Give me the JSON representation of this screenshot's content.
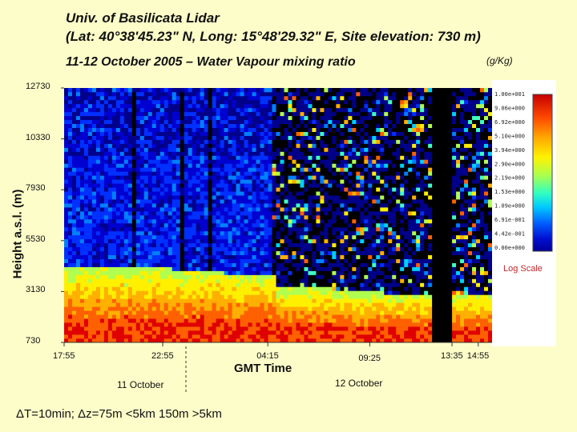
{
  "header": {
    "title_line1": "Univ. of Basilicata Lidar",
    "title_line2": "(Lat: 40°38'45.23\" N, Long: 15°48'29.32\" E, Site elevation: 730 m)",
    "subtitle": "11-12 October 2005 – Water Vapour mixing ratio",
    "units": "(g/Kg)"
  },
  "footer": {
    "resolution": "ΔT=10min;  Δz=75m <5km 150m >5km"
  },
  "colorbar": {
    "scale_note": "Log Scale",
    "labels": [
      "1.00e+001",
      "9.06e+000",
      "6.92e+000",
      "5.10e+000",
      "3.94e+000",
      "2.90e+000",
      "2.19e+000",
      "1.53e+000",
      "1.09e+000",
      "6.91e-001",
      "4.42e-001",
      "0.00e+000"
    ],
    "colors": [
      "#d40000",
      "#ff3000",
      "#ff8a00",
      "#ffd600",
      "#e6ff2a",
      "#9dff5a",
      "#3dffb0",
      "#00e6ff",
      "#008cff",
      "#0033ff",
      "#0000b8",
      "#000000"
    ]
  },
  "chart_data": {
    "type": "heatmap",
    "title": "11-12 October 2005 – Water Vapour mixing ratio",
    "ylabel": "Height a.s.l. (m)",
    "xlabel": "GMT Time",
    "yticks": [
      "12730",
      "10330",
      "7930",
      "5530",
      "3130",
      "730"
    ],
    "ytick_values": [
      12730,
      10330,
      7930,
      5530,
      3130,
      730
    ],
    "ylim": [
      730,
      12730
    ],
    "xticks": [
      "17:55",
      "22:55",
      "04:15",
      "09:25",
      "13:35",
      "14:55"
    ],
    "xtick_hours_since_start": [
      0,
      5.0,
      10.33,
      15.5,
      19.67,
      21.0
    ],
    "date_labels": [
      "11 October",
      "12 October"
    ],
    "colorbar_units": "g/Kg",
    "colorbar_scale": "log",
    "colorbar_range": [
      0,
      10
    ],
    "description_features": {
      "boundary_layer_top_m": [
        4200,
        4200,
        4100,
        4000,
        3300,
        3100,
        3050,
        3000
      ],
      "gap_regions_hours": [
        [
          18.7,
          19.6
        ]
      ]
    }
  }
}
